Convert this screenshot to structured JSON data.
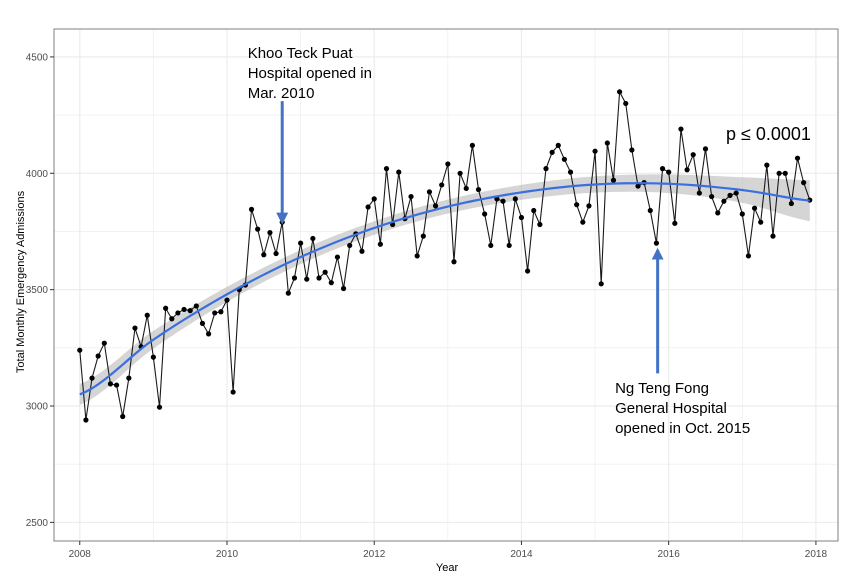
{
  "chart_data": {
    "type": "line",
    "title": "",
    "xlabel": "Year",
    "ylabel": "Total Monthly Emergency Admissions",
    "xlim": [
      2007.65,
      2018.3
    ],
    "ylim": [
      2420,
      4620
    ],
    "x_ticks": [
      2008,
      2010,
      2012,
      2014,
      2016,
      2018
    ],
    "y_ticks": [
      2500,
      3000,
      3500,
      4000,
      4500
    ],
    "grid": true,
    "legend": "none",
    "colors": {
      "series": "#1a1a1a",
      "trend": "#3a6fe0",
      "ribbon": "#b3b3b3",
      "arrow": "#4472c4",
      "grid": "#ebebeb",
      "border": "#7f7f7f"
    },
    "series": [
      {
        "start": "2008-01",
        "frequency": "monthly",
        "values": [
          3240,
          2940,
          3120,
          3215,
          3270,
          3095,
          3090,
          2955,
          3120,
          3335,
          3255,
          3390,
          3210,
          2995,
          3420,
          3375,
          3400,
          3415,
          3410,
          3430,
          3355,
          3310,
          3400,
          3405,
          3455,
          3060,
          3500,
          3520,
          3845,
          3760,
          3650,
          3745,
          3655,
          3790,
          3485,
          3550,
          3700,
          3545,
          3720,
          3550,
          3575,
          3530,
          3640,
          3505,
          3690,
          3740,
          3665,
          3855,
          3890,
          3695,
          4020,
          3780,
          4005,
          3805,
          3900,
          3645,
          3730,
          3920,
          3860,
          3950,
          4040,
          3620,
          4000,
          3935,
          4120,
          3930,
          3825,
          3690,
          3890,
          3880,
          3690,
          3890,
          3810,
          3580,
          3840,
          3780,
          4020,
          4090,
          4120,
          4060,
          4005,
          3865,
          3790,
          3860,
          4095,
          3525,
          4130,
          3970,
          4350,
          4300,
          4100,
          3945,
          3960,
          3840,
          3700,
          4020,
          4005,
          3785,
          4190,
          4015,
          4080,
          3915,
          4105,
          3900,
          3830,
          3880,
          3905,
          3915,
          3825,
          3645,
          3850,
          3790,
          4035,
          3730,
          4000,
          4000,
          3870,
          4065,
          3960,
          3885
        ]
      }
    ],
    "trend": {
      "type": "quadratic fit",
      "x": [
        2008,
        2009,
        2010,
        2011,
        2012,
        2013,
        2014,
        2015,
        2016,
        2017,
        2018
      ],
      "y": [
        3050,
        3285,
        3480,
        3640,
        3765,
        3857,
        3918,
        3952,
        3955,
        3928,
        3880
      ],
      "ci": [
        45,
        38,
        32,
        30,
        29,
        30,
        32,
        35,
        40,
        55,
        90
      ]
    },
    "annotations": [
      {
        "text_lines": [
          "Khoo Teck Puat",
          "Hospital opened in",
          "Mar. 2010"
        ],
        "x": 2010.2,
        "arrow_x": 2010.75,
        "arrow_y_from": 4310,
        "arrow_y_to": 3790
      },
      {
        "text_lines": [
          "Ng Teng Fong",
          "General Hospital",
          "opened in Oct. 2015"
        ],
        "x": 2015.0,
        "arrow_x": 2015.85,
        "arrow_y_from": 3140,
        "arrow_y_to": 3670
      }
    ],
    "p_value": "p ≤ 0.0001"
  }
}
